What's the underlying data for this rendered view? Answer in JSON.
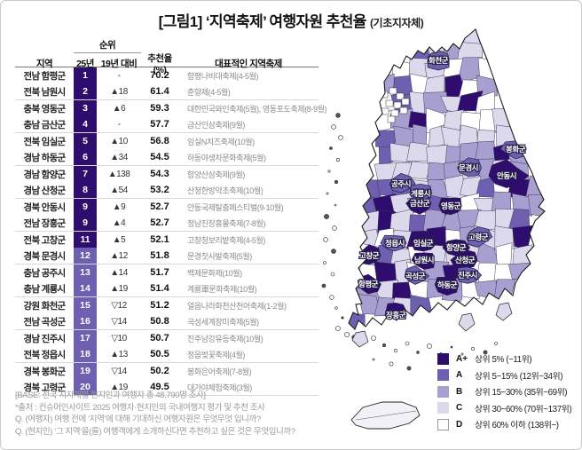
{
  "title": {
    "main": "[그림1] ‘지역축제’ 여행자원 추천율",
    "suffix": "(기초지자체)"
  },
  "chart_data": {
    "type": "table",
    "title": "[그림1] ‘지역축제’ 여행자원 추천율 (기초지자체)",
    "table": {
      "headers": {
        "region": "지역",
        "rank_group": "순위",
        "rank_2025": "25년",
        "vs_2019": "19년 대비",
        "rate": "추천율 (%)",
        "festival": "대표적인 지역축제"
      },
      "rows": [
        {
          "region": "전남 함평군",
          "rank": 1,
          "change": "-",
          "rate": 70.2,
          "festival": "함평나비대축제(4-5월)",
          "grade": "A+"
        },
        {
          "region": "전북 남원시",
          "rank": 2,
          "change": "▲18",
          "rate": 61.4,
          "festival": "춘향제(4-5월)",
          "grade": "A+"
        },
        {
          "region": "충북 영동군",
          "rank": 3,
          "change": "▲6",
          "rate": 59.3,
          "festival": "대한민국와인축제(5월), 영동포도축제(8-9월)",
          "grade": "A+"
        },
        {
          "region": "충남 금산군",
          "rank": 4,
          "change": "-",
          "rate": 57.7,
          "festival": "금산인삼축제(9월)",
          "grade": "A+"
        },
        {
          "region": "전북 임실군",
          "rank": 5,
          "change": "▲10",
          "rate": 56.8,
          "festival": "임실N치즈축제(10월)",
          "grade": "A+"
        },
        {
          "region": "경남 하동군",
          "rank": 6,
          "change": "▲34",
          "rate": 54.5,
          "festival": "하동야생차문화축제(5월)",
          "grade": "A+"
        },
        {
          "region": "경남 함양군",
          "rank": 7,
          "change": "▲138",
          "rate": 54.3,
          "festival": "함양산삼축제(9월)",
          "grade": "A+"
        },
        {
          "region": "경남 산청군",
          "rank": 8,
          "change": "▲54",
          "rate": 53.2,
          "festival": "산청한방약초축제(10월)",
          "grade": "A+"
        },
        {
          "region": "경북 안동시",
          "rank": 9,
          "change": "▲9",
          "rate": 52.7,
          "festival": "안동국제탈춤페스티벌(9-10월)",
          "grade": "A+"
        },
        {
          "region": "전남 장흥군",
          "rank": 9,
          "change": "▲4",
          "rate": 52.7,
          "festival": "정남진장흥물축제(7-8월)",
          "grade": "A+"
        },
        {
          "region": "전북 고창군",
          "rank": 11,
          "change": "▲5",
          "rate": 52.1,
          "festival": "고창청보리밭축제(4-5월)",
          "grade": "A+"
        },
        {
          "region": "경북 문경시",
          "rank": 12,
          "change": "▲12",
          "rate": 51.8,
          "festival": "문경찻사발축제(5월)",
          "grade": "A"
        },
        {
          "region": "충남 공주시",
          "rank": 13,
          "change": "▲14",
          "rate": 51.7,
          "festival": "백제문화제(10월)",
          "grade": "A"
        },
        {
          "region": "충남 계룡시",
          "rank": 14,
          "change": "▲19",
          "rate": 51.4,
          "festival": "계룡軍문화축제(10월)",
          "grade": "A"
        },
        {
          "region": "강원 화천군",
          "rank": 15,
          "change": "▽12",
          "rate": 51.2,
          "festival": "얼음나라화천산천어축제(1-2월)",
          "grade": "A"
        },
        {
          "region": "전남 곡성군",
          "rank": 16,
          "change": "▽14",
          "rate": 50.8,
          "festival": "곡성세계장미축제(5월)",
          "grade": "A"
        },
        {
          "region": "경남 진주시",
          "rank": 17,
          "change": "▽10",
          "rate": 50.7,
          "festival": "진주남강유등축제(10월)",
          "grade": "A"
        },
        {
          "region": "전북 정읍시",
          "rank": 18,
          "change": "▲13",
          "rate": 50.5,
          "festival": "정읍벚꽃축제(4월)",
          "grade": "A"
        },
        {
          "region": "경북 봉화군",
          "rank": 19,
          "change": "▽14",
          "rate": 50.2,
          "festival": "봉화은어축제(7-8월)",
          "grade": "A"
        },
        {
          "region": "경북 고령군",
          "rank": 20,
          "change": "▲19",
          "rate": 49.5,
          "festival": "대가야체험축제(3월)",
          "grade": "A"
        }
      ]
    },
    "map": {
      "kind": "choropleth",
      "regions": [
        {
          "name": "함평군",
          "grade": "A+"
        },
        {
          "name": "남원시",
          "grade": "A+"
        },
        {
          "name": "영동군",
          "grade": "A+"
        },
        {
          "name": "금산군",
          "grade": "A+"
        },
        {
          "name": "임실군",
          "grade": "A+"
        },
        {
          "name": "하동군",
          "grade": "A+"
        },
        {
          "name": "함양군",
          "grade": "A+"
        },
        {
          "name": "산청군",
          "grade": "A+"
        },
        {
          "name": "안동시",
          "grade": "A+"
        },
        {
          "name": "장흥군",
          "grade": "A+"
        },
        {
          "name": "고창군",
          "grade": "A+"
        },
        {
          "name": "문경시",
          "grade": "A"
        },
        {
          "name": "공주시",
          "grade": "A"
        },
        {
          "name": "계룡시",
          "grade": "A"
        },
        {
          "name": "화천군",
          "grade": "A"
        },
        {
          "name": "곡성군",
          "grade": "A"
        },
        {
          "name": "진주시",
          "grade": "A"
        },
        {
          "name": "정읍시",
          "grade": "A"
        },
        {
          "name": "봉화군",
          "grade": "A"
        },
        {
          "name": "고령군",
          "grade": "A"
        }
      ]
    },
    "legend": [
      {
        "grade": "A+",
        "desc": "상위 5% (~11위)",
        "color": "#2E0D6E"
      },
      {
        "grade": "A",
        "desc": "상위 5~15% (12위~34위)",
        "color": "#6F5FB0"
      },
      {
        "grade": "B",
        "desc": "상위 15~30% (35위~69위)",
        "color": "#A89FD1"
      },
      {
        "grade": "C",
        "desc": "상위 30~60% (70위~137위)",
        "color": "#DDD9EC"
      },
      {
        "grade": "D",
        "desc": "상위 60% 이하 (138위~)",
        "color": "#FFFFFF"
      }
    ]
  },
  "footnotes": [
    "[BASE: 전국 지자체별 현지인과 여행자 총 48,790명 조사]",
    "*출처 : 컨슈머인사이트 2025 여행자·현지인의 국내여행지 평가 및 추천 조사",
    "Q. (여행자) 여행 전에 ‘지역’에 대해 기대하신 여행자원은 무엇무엇 입니까?",
    "Q. (현지인) ‘그 지역’을(를) 여행객에게 소개하신다면 추천하고 싶은 것은 무엇입니까?"
  ],
  "colors": {
    "grade_a_plus": "#2E0D6E",
    "grade_a": "#6F5FB0",
    "grade_b": "#A89FD1",
    "grade_c": "#DDD9EC",
    "grade_d": "#FFFFFF",
    "map_border": "#2b2547",
    "frame_border": "#c9c9c9"
  }
}
